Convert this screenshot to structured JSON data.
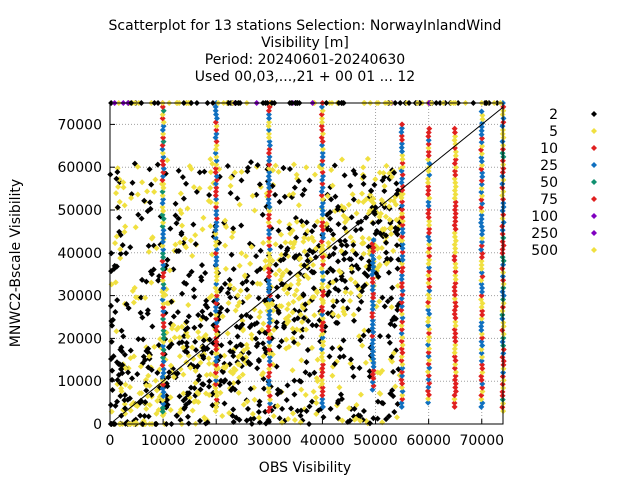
{
  "chart_data": {
    "type": "scatter",
    "title_lines": [
      "Scatterplot for   13 stations Selection: NorwayInlandWind",
      "Visibility [m]",
      "Period: 20240601-20240630",
      "Used 00,03,...,21 + 00 01 ... 12"
    ],
    "xlabel": "OBS Visibility",
    "ylabel": "MNWC2-Bscale Visibility",
    "xlim": [
      0,
      74000
    ],
    "ylim": [
      0,
      75000
    ],
    "x_ticks": [
      0,
      10000,
      20000,
      30000,
      40000,
      50000,
      60000,
      70000
    ],
    "y_ticks": [
      0,
      10000,
      20000,
      30000,
      40000,
      50000,
      60000,
      70000
    ],
    "grid": true,
    "legend_position": "right",
    "diagonal_line": true,
    "legend": [
      {
        "label": "2",
        "color": "#000000"
      },
      {
        "label": "5",
        "color": "#f0e040"
      },
      {
        "label": "10",
        "color": "#e02020"
      },
      {
        "label": "25",
        "color": "#1070c0"
      },
      {
        "label": "50",
        "color": "#109070"
      },
      {
        "label": "75",
        "color": "#e02020"
      },
      {
        "label": "100",
        "color": "#8000c0"
      },
      {
        "label": "250",
        "color": "#8000c0"
      },
      {
        "label": "500",
        "color": "#f0e040"
      }
    ],
    "columns": [
      {
        "x": 10000,
        "y_range": [
          2000,
          75000
        ],
        "colors": [
          "#e02020",
          "#f0e040",
          "#109070",
          "#1070c0"
        ]
      },
      {
        "x": 20000,
        "y_range": [
          3000,
          75000
        ],
        "colors": [
          "#f0e040",
          "#e02020",
          "#1070c0"
        ]
      },
      {
        "x": 30000,
        "y_range": [
          3000,
          75000
        ],
        "colors": [
          "#1070c0",
          "#e02020",
          "#f0e040"
        ]
      },
      {
        "x": 40000,
        "y_range": [
          4000,
          75000
        ],
        "colors": [
          "#e02020",
          "#f0e040",
          "#1070c0"
        ]
      },
      {
        "x": 49500,
        "y_range": [
          8000,
          43000
        ],
        "colors": [
          "#1070c0",
          "#e02020"
        ]
      },
      {
        "x": 55000,
        "y_range": [
          4000,
          70000
        ],
        "colors": [
          "#e02020",
          "#1070c0",
          "#f0e040"
        ]
      },
      {
        "x": 60000,
        "y_range": [
          5000,
          69000
        ],
        "colors": [
          "#e02020",
          "#f0e040",
          "#1070c0"
        ]
      },
      {
        "x": 65000,
        "y_range": [
          4000,
          69000
        ],
        "colors": [
          "#e02020",
          "#f0e040"
        ]
      },
      {
        "x": 70000,
        "y_range": [
          4000,
          73000
        ],
        "colors": [
          "#e02020",
          "#1070c0",
          "#f0e040"
        ]
      },
      {
        "x": 74000,
        "y_range": [
          3000,
          75000
        ],
        "colors": [
          "#109070",
          "#1070c0",
          "#e02020",
          "#f0e040"
        ]
      }
    ],
    "scatter_cloud": {
      "description_note": "",
      "x_range": [
        0,
        55000
      ],
      "y_range": [
        0,
        62000
      ],
      "colors": [
        "#000000",
        "#f0e040"
      ]
    },
    "top_row": {
      "y": 75000,
      "x_range": [
        0,
        74000
      ],
      "colors": [
        "#000000",
        "#f0e040",
        "#8000c0"
      ]
    }
  }
}
